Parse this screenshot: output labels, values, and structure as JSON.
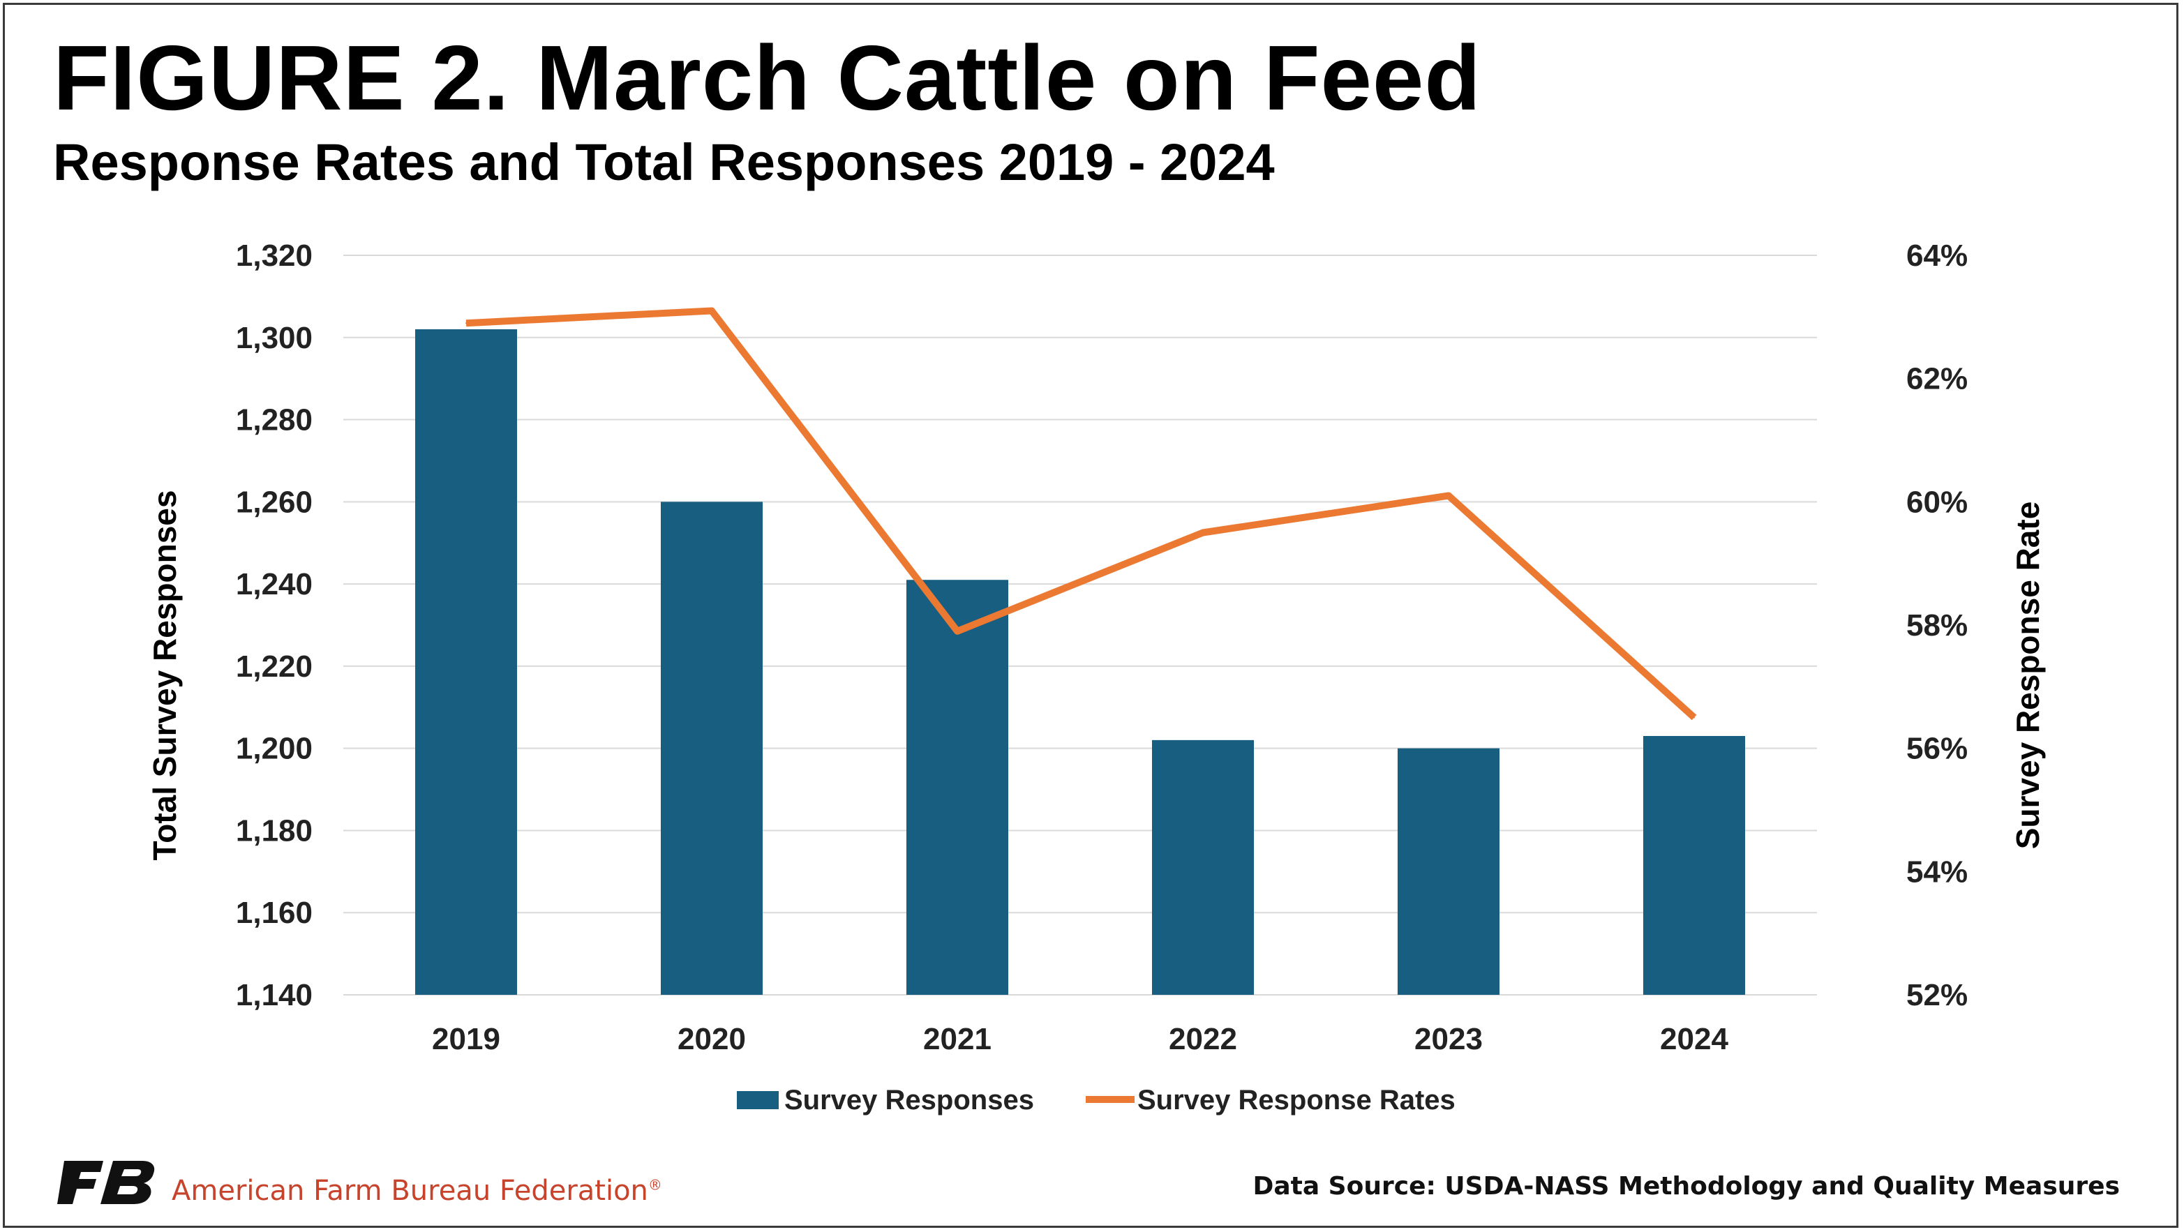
{
  "colors": {
    "bar": "#175e81",
    "line": "#ec7932",
    "grid": "#d9d9d9",
    "org_red": "#c8432c"
  },
  "chart_data": {
    "type": "bar",
    "title": "FIGURE 2. March Cattle on Feed",
    "subtitle": "Response Rates and Total Responses 2019 - 2024",
    "categories": [
      "2019",
      "2020",
      "2021",
      "2022",
      "2023",
      "2024"
    ],
    "ylabel": "Total Survey Responses",
    "y2label": "Survey Response Rate",
    "ylim": [
      1140,
      1320
    ],
    "y2lim": [
      52,
      64
    ],
    "yticks": [
      "1,140",
      "1,160",
      "1,180",
      "1,200",
      "1,220",
      "1,240",
      "1,260",
      "1,280",
      "1,300",
      "1,320"
    ],
    "y2ticks": [
      "52%",
      "54%",
      "56%",
      "58%",
      "60%",
      "62%",
      "64%"
    ],
    "grid": true,
    "legend_position": "bottom",
    "series": [
      {
        "name": "Survey Responses",
        "type": "bar",
        "axis": "left",
        "values": [
          1302,
          1260,
          1241,
          1202,
          1200,
          1203
        ]
      },
      {
        "name": "Survey Response Rates",
        "type": "line",
        "axis": "right",
        "values": [
          62.9,
          63.1,
          57.9,
          59.5,
          60.1,
          56.5
        ]
      }
    ]
  },
  "footer": {
    "org_name": "American Farm Bureau Federation",
    "registered_mark": "®",
    "source": "Data Source:  USDA-NASS Methodology and Quality Measures"
  }
}
